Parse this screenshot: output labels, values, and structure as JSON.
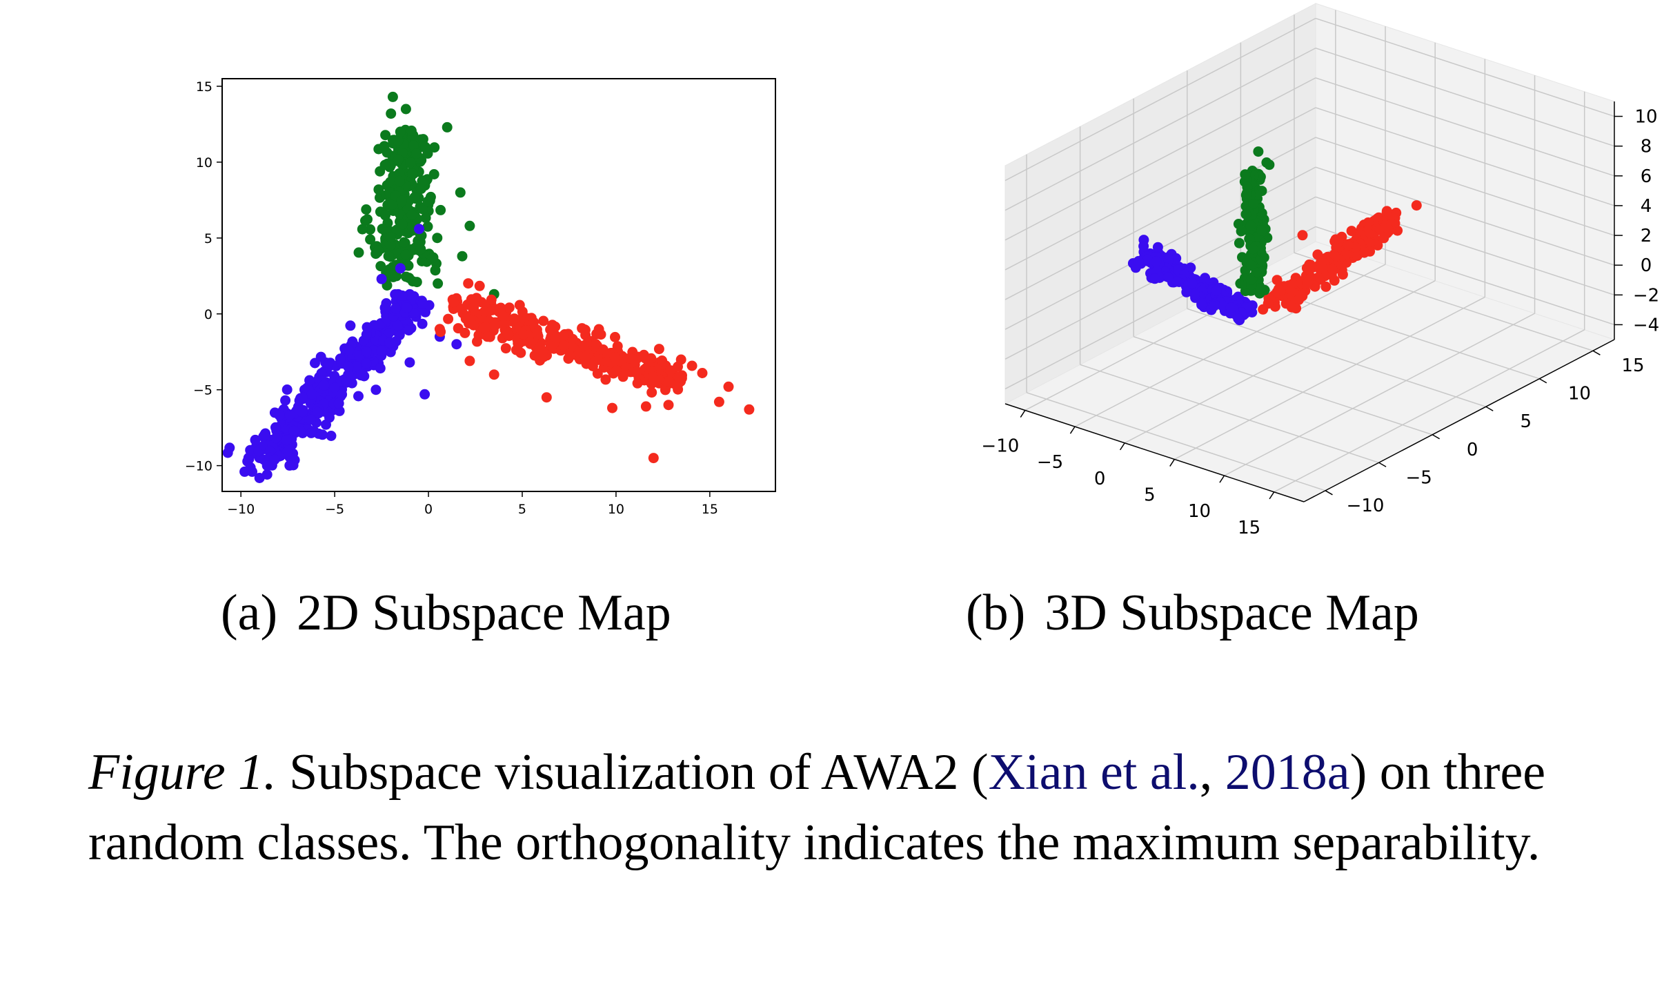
{
  "colors": {
    "blue": "#3a0df0",
    "green": "#0b7a1d",
    "red": "#f42a1e",
    "cite": "#0d0d6e"
  },
  "chart_data": [
    {
      "type": "scatter",
      "label": "(a)",
      "title": "2D Subspace Map",
      "xlim": [
        -11,
        18.5
      ],
      "ylim": [
        -11.7,
        15.5
      ],
      "xticks": [
        -10,
        -5,
        0,
        5,
        10,
        15
      ],
      "yticks": [
        -10,
        -5,
        0,
        5,
        10,
        15
      ],
      "grid": false,
      "series": [
        {
          "color": "green",
          "clusters": [
            {
              "from": [
                -1.5,
                2
              ],
              "to": [
                -1.2,
                12
              ],
              "n": 260,
              "spread": 0.9
            }
          ],
          "points": [
            [
              -1.9,
              14.3
            ],
            [
              -1.2,
              13.5
            ],
            [
              -2.0,
              13.2
            ],
            [
              1.0,
              12.3
            ],
            [
              -1.5,
              12.0
            ],
            [
              1.7,
              8.0
            ],
            [
              2.2,
              5.8
            ],
            [
              0.5,
              2.0
            ],
            [
              3.5,
              1.3
            ],
            [
              5.0,
              -0.7
            ],
            [
              -0.4,
              0.8
            ],
            [
              1.8,
              3.8
            ],
            [
              -2.3,
              6.5
            ],
            [
              0.3,
              9.2
            ]
          ]
        },
        {
          "color": "blue",
          "clusters": [
            {
              "from": [
                -9.5,
                -10.2
              ],
              "to": [
                -0.5,
                1.0
              ],
              "n": 420,
              "spread": 0.7
            }
          ],
          "points": [
            [
              -9.8,
              -10.4
            ],
            [
              -9.4,
              -10.4
            ],
            [
              -8.6,
              -10.0
            ],
            [
              -8.2,
              -9.6
            ],
            [
              -0.5,
              5.6
            ],
            [
              -1.5,
              3.0
            ],
            [
              -0.2,
              -5.3
            ],
            [
              -2.8,
              -5.0
            ],
            [
              -1.0,
              -3.2
            ],
            [
              1.5,
              -2.0
            ],
            [
              0.6,
              -1.5
            ],
            [
              -2.5,
              2.3
            ]
          ]
        },
        {
          "color": "red",
          "clusters": [
            {
              "from": [
                1.0,
                0.5
              ],
              "to": [
                13.5,
                -4.5
              ],
              "n": 360,
              "spread": 0.75
            }
          ],
          "points": [
            [
              12.0,
              -9.5
            ],
            [
              16.0,
              -4.8
            ],
            [
              17.1,
              -6.3
            ],
            [
              15.5,
              -5.8
            ],
            [
              11.6,
              -6.1
            ],
            [
              12.8,
              -6.0
            ],
            [
              6.3,
              -5.5
            ],
            [
              9.8,
              -6.2
            ],
            [
              14.6,
              -3.9
            ],
            [
              2.2,
              -3.1
            ],
            [
              0.6,
              -1.0
            ],
            [
              3.5,
              -4.0
            ]
          ]
        }
      ]
    },
    {
      "type": "scatter",
      "label": "(b)",
      "title": "3D Subspace Map",
      "xlim": [
        -12,
        18
      ],
      "ylim": [
        -12,
        17
      ],
      "zlim": [
        -5,
        11
      ],
      "xticks": [
        -10,
        -5,
        0,
        5,
        10,
        15
      ],
      "yticks": [
        -10,
        -5,
        0,
        5,
        10,
        15
      ],
      "zticks": [
        -4,
        -2,
        0,
        2,
        4,
        6,
        8,
        10
      ],
      "grid": true,
      "series": [
        {
          "color": "blue",
          "clusters": [
            {
              "from": [
                -10.5,
                0,
                0.8
              ],
              "to": [
                -1,
                0,
                -1.0
              ],
              "n": 260,
              "spread": 0.55
            }
          ],
          "points": [
            [
              -11.2,
              0.2,
              1.6
            ],
            [
              -11.0,
              0.0,
              1.3
            ]
          ]
        },
        {
          "color": "green",
          "clusters": [
            {
              "from": [
                0,
                0,
                0.5
              ],
              "to": [
                0,
                0,
                8.5
              ],
              "n": 170,
              "spread": 0.45
            }
          ],
          "points": [
            [
              0.2,
              0.3,
              10.0
            ],
            [
              0.6,
              0.7,
              9.2
            ],
            [
              1.2,
              0.4,
              9.3
            ],
            [
              0.0,
              0.0,
              7.4
            ],
            [
              -1.5,
              0.2,
              0.8
            ]
          ]
        },
        {
          "color": "red",
          "clusters": [
            {
              "from": [
                0,
                2,
                -1.2
              ],
              "to": [
                0,
                13,
                0.8
              ],
              "n": 230,
              "spread": 0.7
            }
          ],
          "points": [
            [
              1.2,
              3.5,
              3.4
            ],
            [
              0.5,
              14.8,
              1.0
            ]
          ]
        }
      ]
    }
  ],
  "caption": {
    "figure_number": "Figure 1.",
    "text_before": " Subspace visualization of AWA2 (",
    "cite_author": "Xian et al.",
    "cite_sep": ", ",
    "cite_year": "2018a",
    "text_after": ") on three random classes. The orthogonality indicates the maximum separability."
  }
}
